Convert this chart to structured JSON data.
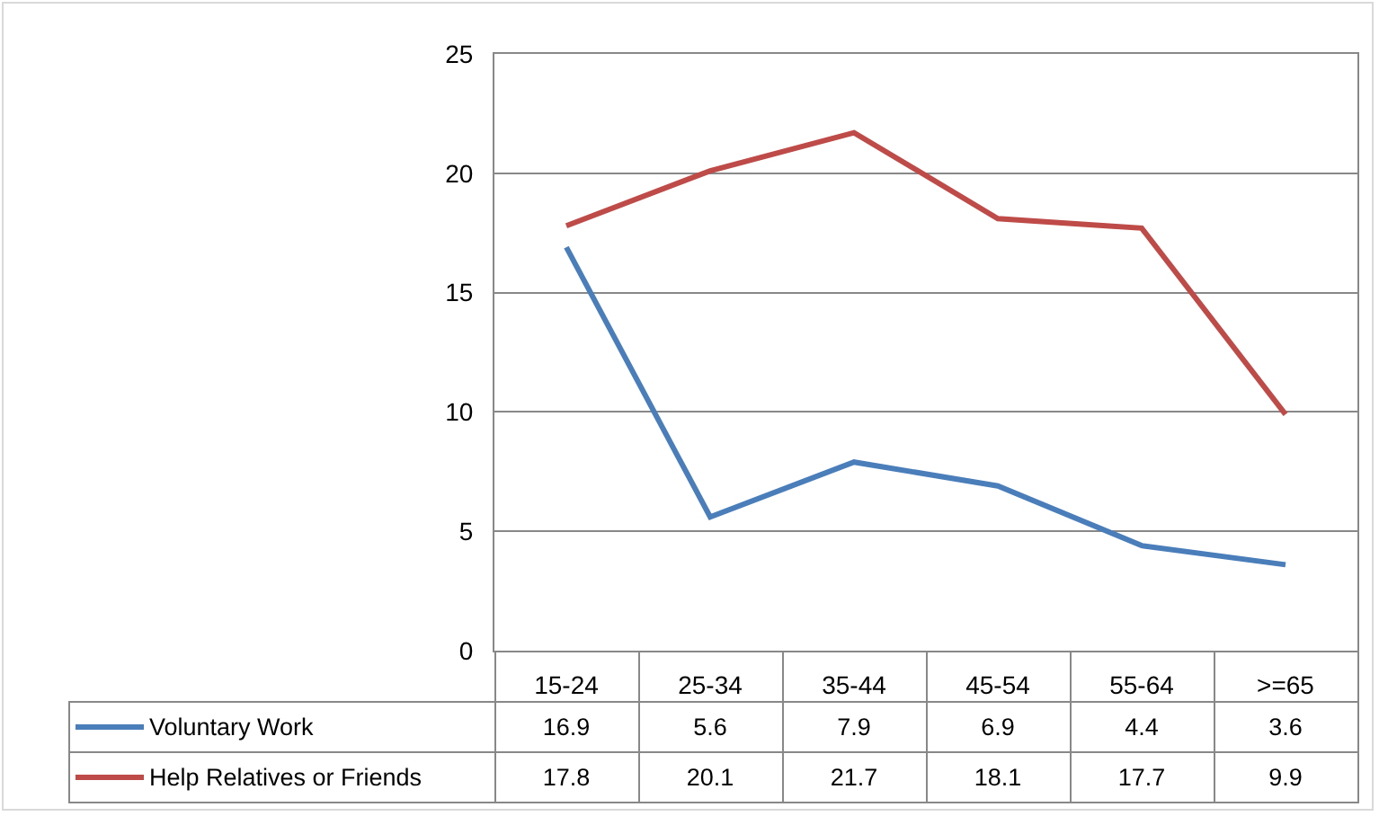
{
  "chart_data": {
    "type": "line",
    "categories": [
      "15-24",
      "25-34",
      "35-44",
      "45-54",
      "55-64",
      ">=65"
    ],
    "series": [
      {
        "name": "Voluntary Work",
        "color": "#4a7ebb",
        "values": [
          16.9,
          5.6,
          7.9,
          6.9,
          4.4,
          3.6
        ]
      },
      {
        "name": "Help Relatives or Friends",
        "color": "#be4b48",
        "values": [
          17.8,
          20.1,
          21.7,
          18.1,
          17.7,
          9.9
        ]
      }
    ],
    "ylim": [
      0,
      25
    ],
    "yticks": [
      0,
      5,
      10,
      15,
      20,
      25
    ],
    "grid": "y",
    "legend": "bottom left",
    "marker": "none",
    "line_style": "solid",
    "data_labels": true
  }
}
